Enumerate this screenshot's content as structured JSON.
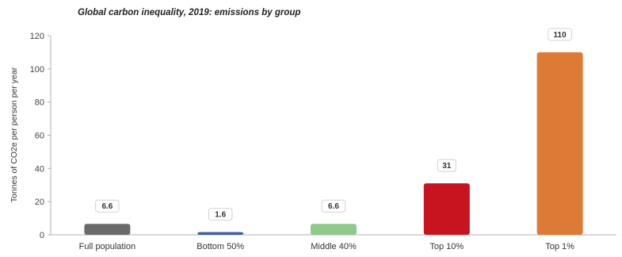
{
  "chart_data": {
    "type": "bar",
    "title": "Global carbon inequality, 2019: emissions by group",
    "ylabel": "Tonnes of CO2e per person per year",
    "xlabel": "",
    "ylim": [
      0,
      120
    ],
    "yticks": [
      0,
      20,
      40,
      60,
      80,
      100,
      120
    ],
    "grid": false,
    "legend": "none",
    "categories": [
      "Full population",
      "Bottom 50%",
      "Middle 40%",
      "Top 10%",
      "Top 1%"
    ],
    "values": [
      6.6,
      1.6,
      6.6,
      31,
      110
    ],
    "data_labels": [
      "6.6",
      "1.6",
      "6.6",
      "31",
      "110"
    ],
    "colors": [
      "#6b6b6b",
      "#3f5f9e",
      "#8fc98c",
      "#c8141e",
      "#dd7b36"
    ]
  }
}
